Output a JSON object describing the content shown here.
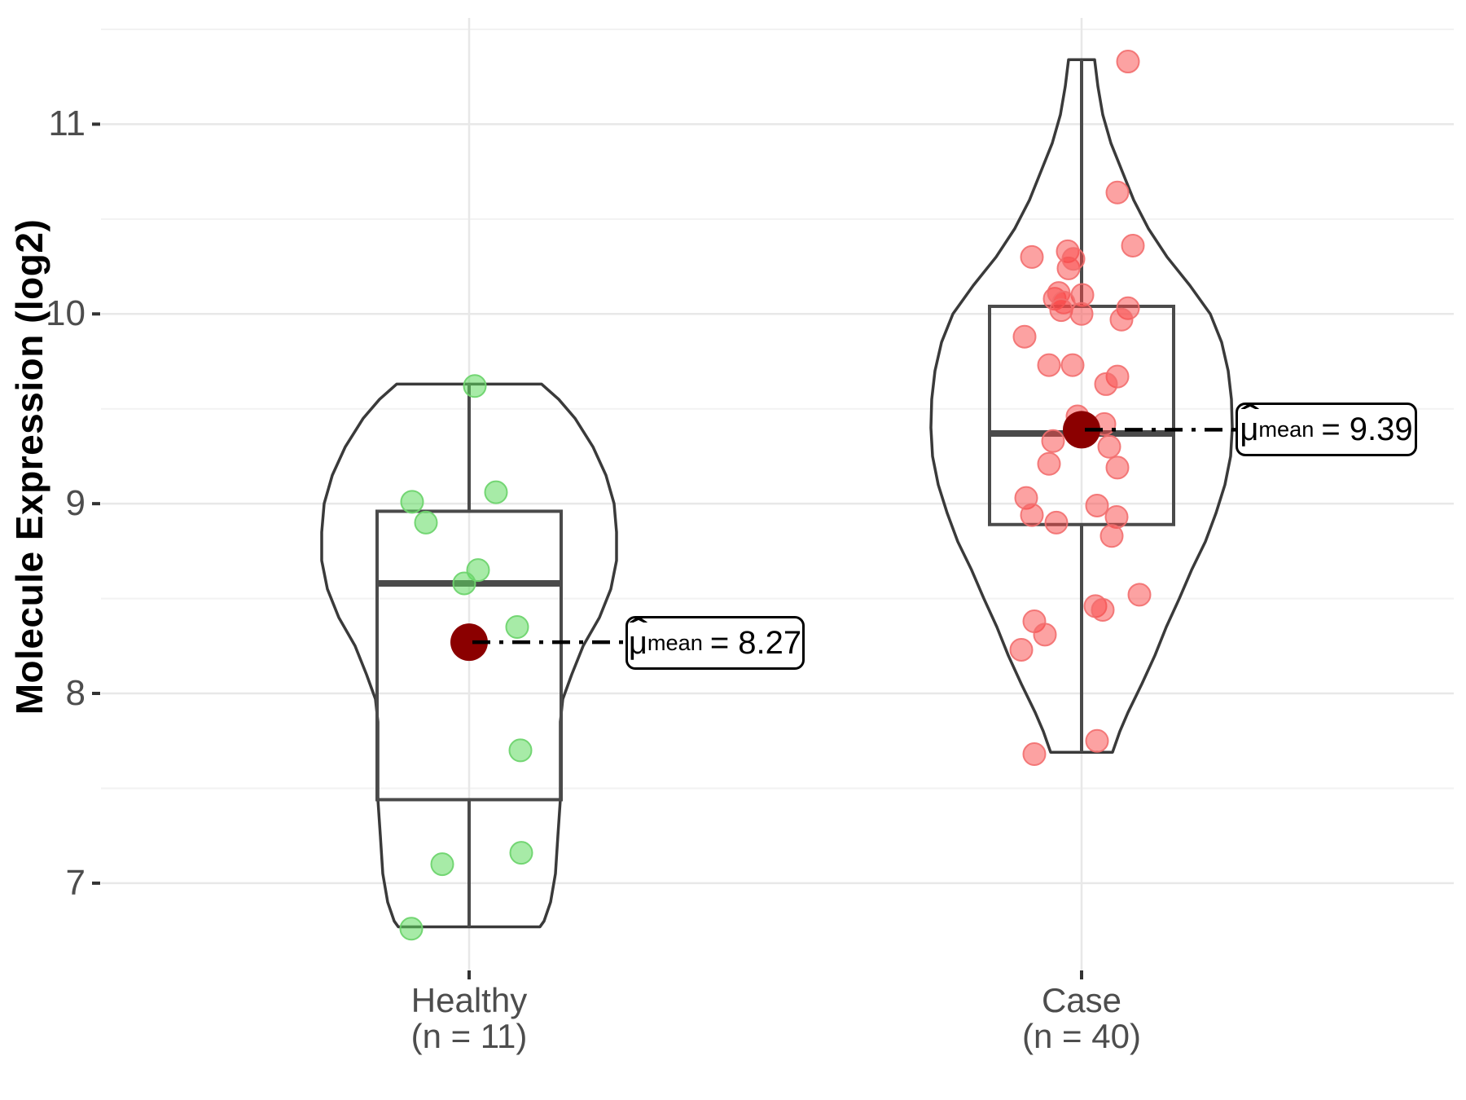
{
  "axes": {
    "y": {
      "title": "Molecule Expression (log2)",
      "tick_labels": [
        "11",
        "10",
        "9",
        "8",
        "7"
      ]
    }
  },
  "chart_data": {
    "type": "violin-box-jitter",
    "title": "",
    "xlabel": "",
    "ylabel": "Molecule Expression (log2)",
    "ylim": [
      6.54,
      11.56
    ],
    "y_major_ticks": [
      11,
      10,
      9,
      8,
      7
    ],
    "y_minor_ticks": [
      11.5,
      10.5,
      9.5,
      8.5,
      7.5
    ],
    "grid": true,
    "style": {
      "violin_stroke": "#3a3a3a",
      "box_stroke": "#4a4a4a",
      "grid_major": "#e8e8e8",
      "grid_minor": "#f2f2f2",
      "tick_color": "#333333",
      "mean_color": "#8B0000",
      "annotation_line_color": "#000000"
    },
    "groups": [
      {
        "label": "Healthy",
        "n_label": "(n = 11)",
        "n": 11,
        "mean": 8.27,
        "mean_label": {
          "mu": "μ",
          "hat": "ˆ",
          "sub": "mean",
          "value": "= 8.27"
        },
        "box": {
          "q1": 7.44,
          "median": 8.58,
          "q3": 8.96,
          "whisker_low": 6.77,
          "whisker_high": 9.63
        },
        "colors": {
          "fill": "rgba(95,219,95,0.55)",
          "stroke": "rgba(110,212,110,0.95)"
        },
        "points": [
          [
            7,
            9.62
          ],
          [
            -70,
            9.01
          ],
          [
            -53,
            8.9
          ],
          [
            33,
            9.06
          ],
          [
            11,
            8.65
          ],
          [
            -6,
            8.58
          ],
          [
            59,
            8.35
          ],
          [
            63,
            7.7
          ],
          [
            -33,
            7.1
          ],
          [
            64,
            7.16
          ],
          [
            -71,
            6.76
          ]
        ],
        "violin_profile": [
          [
            6.77,
            87
          ],
          [
            6.8,
            92
          ],
          [
            6.9,
            100
          ],
          [
            7.05,
            106
          ],
          [
            7.25,
            109
          ],
          [
            7.44,
            112
          ],
          [
            7.6,
            112
          ],
          [
            7.85,
            112
          ],
          [
            7.97,
            115
          ],
          [
            8.1,
            126
          ],
          [
            8.25,
            140
          ],
          [
            8.4,
            160
          ],
          [
            8.55,
            174
          ],
          [
            8.7,
            181
          ],
          [
            8.85,
            181
          ],
          [
            9.0,
            178
          ],
          [
            9.15,
            168
          ],
          [
            9.3,
            152
          ],
          [
            9.45,
            130
          ],
          [
            9.55,
            110
          ],
          [
            9.63,
            89
          ]
        ]
      },
      {
        "label": "Case",
        "n_label": "(n = 40)",
        "n": 40,
        "mean": 9.39,
        "mean_label": {
          "mu": "μ",
          "hat": "ˆ",
          "sub": "mean",
          "value": "= 9.39"
        },
        "box": {
          "q1": 8.89,
          "median": 9.37,
          "q3": 10.04,
          "whisker_low": 7.69,
          "whisker_high": 11.34
        },
        "colors": {
          "fill": "rgba(250,70,70,0.50)",
          "stroke": "rgba(242,110,110,0.9)"
        },
        "points": [
          [
            57,
            11.33
          ],
          [
            44,
            10.64
          ],
          [
            63,
            10.36
          ],
          [
            -61,
            10.3
          ],
          [
            -17,
            10.33
          ],
          [
            -16,
            10.24
          ],
          [
            -10,
            10.29
          ],
          [
            -33,
            10.08
          ],
          [
            -28,
            10.11
          ],
          [
            1,
            10.1
          ],
          [
            -22,
            10.06
          ],
          [
            -25,
            10.02
          ],
          [
            0,
            10.0
          ],
          [
            57,
            10.03
          ],
          [
            49,
            9.97
          ],
          [
            -70,
            9.88
          ],
          [
            -40,
            9.73
          ],
          [
            -11,
            9.73
          ],
          [
            44,
            9.67
          ],
          [
            30,
            9.63
          ],
          [
            28,
            9.42
          ],
          [
            -5,
            9.46
          ],
          [
            -35,
            9.33
          ],
          [
            34,
            9.3
          ],
          [
            -40,
            9.21
          ],
          [
            44,
            9.19
          ],
          [
            -68,
            9.03
          ],
          [
            19,
            8.99
          ],
          [
            -61,
            8.94
          ],
          [
            43,
            8.93
          ],
          [
            -31,
            8.9
          ],
          [
            37,
            8.83
          ],
          [
            71,
            8.52
          ],
          [
            17,
            8.46
          ],
          [
            26,
            8.44
          ],
          [
            -58,
            8.38
          ],
          [
            -45,
            8.31
          ],
          [
            -74,
            8.23
          ],
          [
            19,
            7.75
          ],
          [
            -58,
            7.68
          ]
        ],
        "violin_profile": [
          [
            7.69,
            38
          ],
          [
            7.8,
            47
          ],
          [
            7.9,
            57
          ],
          [
            8.05,
            74
          ],
          [
            8.2,
            90
          ],
          [
            8.35,
            104
          ],
          [
            8.5,
            120
          ],
          [
            8.65,
            135
          ],
          [
            8.8,
            152
          ],
          [
            8.95,
            165
          ],
          [
            9.1,
            176
          ],
          [
            9.25,
            183
          ],
          [
            9.4,
            185
          ],
          [
            9.55,
            184
          ],
          [
            9.7,
            180
          ],
          [
            9.85,
            172
          ],
          [
            10.0,
            158
          ],
          [
            10.15,
            133
          ],
          [
            10.3,
            105
          ],
          [
            10.45,
            82
          ],
          [
            10.6,
            64
          ],
          [
            10.75,
            50
          ],
          [
            10.9,
            36
          ],
          [
            11.05,
            26
          ],
          [
            11.2,
            20
          ],
          [
            11.34,
            16
          ]
        ]
      }
    ]
  }
}
